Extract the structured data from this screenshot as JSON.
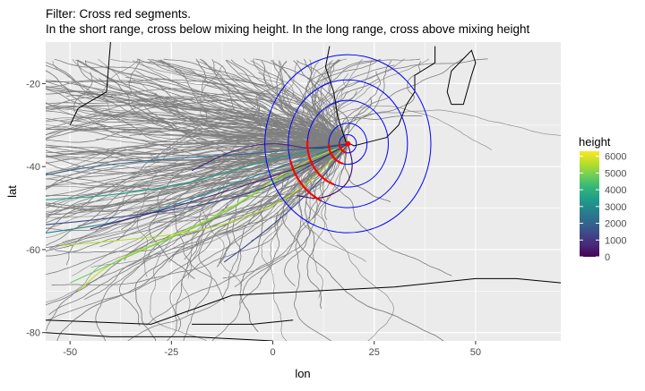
{
  "title": {
    "line1": "Filter: Cross red segments.",
    "line2": "In the short range, cross below mixing height. In the long range, cross above mixing height"
  },
  "colors": {
    "panel": "#ebebeb",
    "grid": "#ffffff",
    "trajectory": "#7f7f7f",
    "ring": "#0000ff",
    "cross": "#ff0000",
    "coast": "#000000"
  },
  "chart_data": {
    "type": "line",
    "title": "Filter: Cross red segments.\nIn the short range, cross below mixing height. In the long range, cross above mixing height",
    "xlabel": "lon",
    "ylabel": "lat",
    "xlim": [
      -56,
      71
    ],
    "ylim": [
      -82,
      -10
    ],
    "xticks": [
      -50,
      -25,
      0,
      25,
      50
    ],
    "yticks": [
      -20,
      -40,
      -60,
      -80
    ],
    "xtick_labels": [
      "-50",
      "-25",
      "0",
      "25",
      "50"
    ],
    "ytick_labels": [
      "-20",
      "-40",
      "-60",
      "-80"
    ],
    "grid": true,
    "source": {
      "lon": 18.5,
      "lat": -34.5
    },
    "rings": [
      {
        "radius_deg": 2.0
      },
      {
        "radius_deg": 4.5
      },
      {
        "radius_deg": 9.5
      },
      {
        "radius_deg": 14.0
      },
      {
        "radius_deg": 19.5
      }
    ],
    "red_cross_arcs": [
      {
        "radius_deg": 2.0,
        "start_deg": 180,
        "end_deg": 260
      },
      {
        "radius_deg": 4.5,
        "start_deg": 180,
        "end_deg": 255
      },
      {
        "radius_deg": 9.5,
        "start_deg": 175,
        "end_deg": 250
      },
      {
        "radius_deg": 14.0,
        "start_deg": 195,
        "end_deg": 245
      }
    ],
    "colored_trajectories": [
      {
        "height": 5800,
        "points": [
          [
            18.5,
            -34.5
          ],
          [
            5,
            -40
          ],
          [
            -10,
            -50
          ],
          [
            -25,
            -57
          ],
          [
            -40,
            -63
          ],
          [
            -48,
            -70
          ]
        ]
      },
      {
        "height": 4800,
        "points": [
          [
            18.5,
            -34.5
          ],
          [
            3,
            -42
          ],
          [
            -15,
            -53
          ],
          [
            -32,
            -60
          ],
          [
            -50,
            -68
          ]
        ]
      },
      {
        "height": 5500,
        "points": [
          [
            18.5,
            -34.5
          ],
          [
            8,
            -45
          ],
          [
            -5,
            -52
          ],
          [
            -20,
            -56
          ],
          [
            -40,
            -58
          ],
          [
            -52,
            -59
          ]
        ]
      },
      {
        "height": 3800,
        "points": [
          [
            18.5,
            -34.5
          ],
          [
            0,
            -38
          ],
          [
            -20,
            -44
          ],
          [
            -40,
            -47
          ],
          [
            -56,
            -48
          ]
        ]
      },
      {
        "height": 3000,
        "points": [
          [
            18.5,
            -34.5
          ],
          [
            5,
            -39
          ],
          [
            -15,
            -46
          ],
          [
            -35,
            -53
          ],
          [
            -56,
            -56
          ]
        ]
      },
      {
        "height": 2000,
        "points": [
          [
            18.5,
            -34.5
          ],
          [
            -5,
            -37
          ],
          [
            -25,
            -38
          ],
          [
            -45,
            -40
          ],
          [
            -56,
            -42
          ]
        ]
      },
      {
        "height": 1500,
        "points": [
          [
            18.5,
            -34.5
          ],
          [
            0,
            -45
          ],
          [
            -20,
            -50
          ],
          [
            -45,
            -53
          ],
          [
            -56,
            -54
          ]
        ]
      },
      {
        "height": 800,
        "points": [
          [
            18.5,
            -34.5
          ],
          [
            10,
            -39
          ],
          [
            -5,
            -44
          ],
          [
            -25,
            -50
          ],
          [
            -45,
            -55
          ]
        ]
      },
      {
        "height": 400,
        "points": [
          [
            18.5,
            -34.5
          ],
          [
            10,
            -36
          ],
          [
            0,
            -34
          ],
          [
            -10,
            -36
          ],
          [
            -20,
            -41
          ]
        ]
      },
      {
        "height": 1200,
        "points": [
          [
            18.5,
            -34.5
          ],
          [
            13,
            -42
          ],
          [
            5,
            -50
          ],
          [
            -5,
            -58
          ],
          [
            -12,
            -63
          ]
        ]
      },
      {
        "height": 300,
        "points": [
          [
            18.5,
            -34.5
          ],
          [
            20,
            -40
          ],
          [
            18,
            -45
          ],
          [
            12,
            -48
          ],
          [
            6,
            -47
          ]
        ]
      }
    ],
    "color_scale": {
      "title": "height",
      "ticks": [
        0,
        1000,
        2000,
        3000,
        4000,
        5000,
        6000
      ],
      "tick_labels": [
        "0",
        "1000",
        "2000",
        "3000",
        "4000",
        "5000",
        "6000"
      ],
      "min": 0,
      "max": 6300,
      "palette": [
        "#440154",
        "#482878",
        "#3e4989",
        "#31688e",
        "#26828e",
        "#1f9e89",
        "#35b779",
        "#6ece58",
        "#b5de2b",
        "#fde725"
      ]
    },
    "legend_position": "right"
  }
}
